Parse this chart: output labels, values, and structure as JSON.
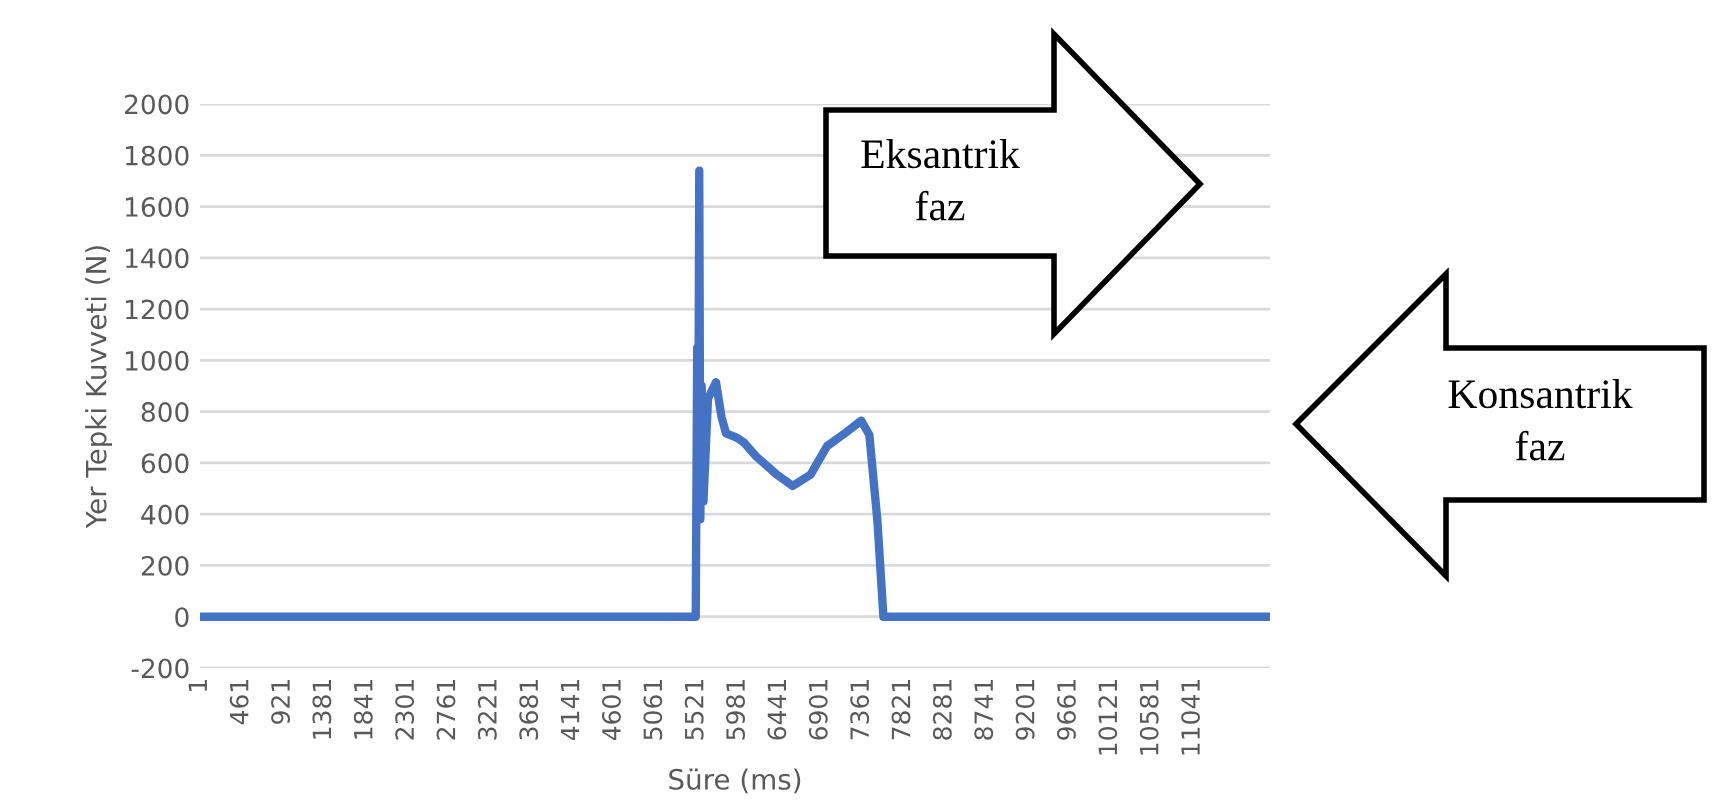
{
  "chart_data": {
    "type": "line",
    "xlabel": "Süre (ms)",
    "ylabel": "Yer Tepki Kuvveti (N)",
    "series": [
      {
        "color": "#4472c4",
        "x": [
          1,
          5514,
          5530,
          5540,
          5553,
          5565,
          5580,
          5600,
          5650,
          5739,
          5800,
          5851,
          5963,
          6050,
          6187,
          6300,
          6412,
          6591,
          6793,
          6973,
          7152,
          7354,
          7444,
          7534,
          7601,
          11900
        ],
        "values": [
          0,
          0,
          1050,
          400,
          1740,
          380,
          900,
          450,
          850,
          915,
          780,
          715,
          700,
          680,
          625,
          590,
          555,
          510,
          555,
          665,
          710,
          765,
          710,
          375,
          0,
          0
        ]
      }
    ],
    "xlim": [
      1,
      11900
    ],
    "xticks": [
      1,
      461,
      921,
      1381,
      1841,
      2301,
      2761,
      3221,
      3681,
      4141,
      4601,
      5061,
      5521,
      5981,
      6441,
      6901,
      7361,
      7821,
      8281,
      8741,
      9201,
      9661,
      10121,
      10581,
      11041
    ],
    "ylim": [
      -200,
      2000
    ],
    "yticks": [
      -200,
      0,
      200,
      400,
      600,
      800,
      1000,
      1200,
      1400,
      1600,
      1800,
      2000
    ],
    "grid": "y",
    "marker": "none",
    "line_style": "solid",
    "annotations": [
      "Eksantrik\nfaz",
      "Konsantrik\nfaz"
    ]
  }
}
